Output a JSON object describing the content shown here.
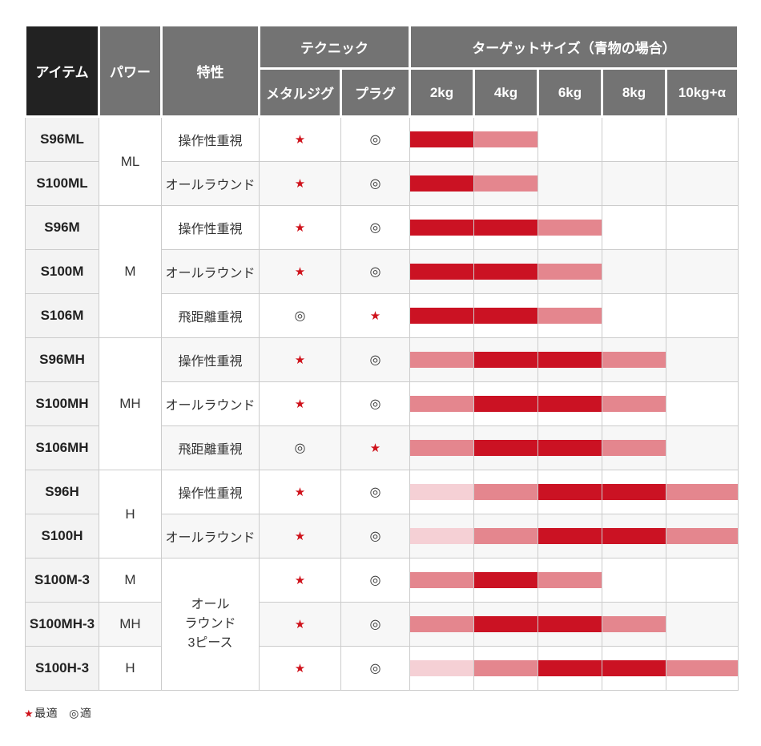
{
  "header": {
    "item": "アイテム",
    "power": "パワー",
    "feature": "特性",
    "technique": "テクニック",
    "technique_cols": [
      "メタルジグ",
      "プラグ"
    ],
    "target_group": "ターゲットサイズ（青物の場合）",
    "target_cols": [
      "2kg",
      "4kg",
      "6kg",
      "8kg",
      "10kg+α"
    ]
  },
  "symbols": {
    "best": "★",
    "good": "◎"
  },
  "legend": {
    "best_label": "最適",
    "good_label": "適"
  },
  "colors": {
    "bar_dark": "#cb1223",
    "bar_medium": "#e4868e",
    "bar_light": "#f5d0d5",
    "symbol_red": "#cf121b",
    "header_gray": "#737373",
    "header_black": "#222222",
    "grid_line": "#cccccc"
  },
  "chart_data": {
    "type": "table",
    "title": "",
    "target_columns": [
      "2kg",
      "4kg",
      "6kg",
      "8kg",
      "10kg+α"
    ],
    "bar_intensity_scale": {
      "3": "dark",
      "2": "medium",
      "1": "light",
      "0": "none"
    },
    "mark_legend": {
      "best": "★最適",
      "good": "◎適"
    },
    "rows": [
      {
        "item": "S96ML",
        "power": {
          "label": "ML",
          "span": 2
        },
        "feature": {
          "label": "操作性重視",
          "span": 1
        },
        "metal_jig": "best",
        "plug": "good",
        "bars": [
          3,
          2,
          0,
          0,
          0
        ]
      },
      {
        "item": "S100ML",
        "feature": {
          "label": "オールラウンド",
          "span": 1
        },
        "metal_jig": "best",
        "plug": "good",
        "bars": [
          3,
          2,
          0,
          0,
          0
        ]
      },
      {
        "item": "S96M",
        "power": {
          "label": "M",
          "span": 3
        },
        "feature": {
          "label": "操作性重視",
          "span": 1
        },
        "metal_jig": "best",
        "plug": "good",
        "bars": [
          3,
          3,
          2,
          0,
          0
        ]
      },
      {
        "item": "S100M",
        "feature": {
          "label": "オールラウンド",
          "span": 1
        },
        "metal_jig": "best",
        "plug": "good",
        "bars": [
          3,
          3,
          2,
          0,
          0
        ]
      },
      {
        "item": "S106M",
        "feature": {
          "label": "飛距離重視",
          "span": 1
        },
        "metal_jig": "good",
        "plug": "best",
        "bars": [
          3,
          3,
          2,
          0,
          0
        ]
      },
      {
        "item": "S96MH",
        "power": {
          "label": "MH",
          "span": 3
        },
        "feature": {
          "label": "操作性重視",
          "span": 1
        },
        "metal_jig": "best",
        "plug": "good",
        "bars": [
          2,
          3,
          3,
          2,
          0
        ]
      },
      {
        "item": "S100MH",
        "feature": {
          "label": "オールラウンド",
          "span": 1
        },
        "metal_jig": "best",
        "plug": "good",
        "bars": [
          2,
          3,
          3,
          2,
          0
        ]
      },
      {
        "item": "S106MH",
        "feature": {
          "label": "飛距離重視",
          "span": 1
        },
        "metal_jig": "good",
        "plug": "best",
        "bars": [
          2,
          3,
          3,
          2,
          0
        ]
      },
      {
        "item": "S96H",
        "power": {
          "label": "H",
          "span": 2
        },
        "feature": {
          "label": "操作性重視",
          "span": 1
        },
        "metal_jig": "best",
        "plug": "good",
        "bars": [
          1,
          2,
          3,
          3,
          2
        ]
      },
      {
        "item": "S100H",
        "feature": {
          "label": "オールラウンド",
          "span": 1
        },
        "metal_jig": "best",
        "plug": "good",
        "bars": [
          1,
          2,
          3,
          3,
          2
        ]
      },
      {
        "item": "S100M-3",
        "power": {
          "label": "M",
          "span": 1
        },
        "feature": {
          "label": "オールラウンド3ピース",
          "span": 3,
          "lines": [
            "オール",
            "ラウンド",
            "3ピース"
          ]
        },
        "metal_jig": "best",
        "plug": "good",
        "bars": [
          2,
          3,
          2,
          0,
          0
        ]
      },
      {
        "item": "S100MH-3",
        "power": {
          "label": "MH",
          "span": 1
        },
        "metal_jig": "best",
        "plug": "good",
        "bars": [
          2,
          3,
          3,
          2,
          0
        ]
      },
      {
        "item": "S100H-3",
        "power": {
          "label": "H",
          "span": 1
        },
        "metal_jig": "best",
        "plug": "good",
        "bars": [
          1,
          2,
          3,
          3,
          2
        ]
      }
    ]
  }
}
